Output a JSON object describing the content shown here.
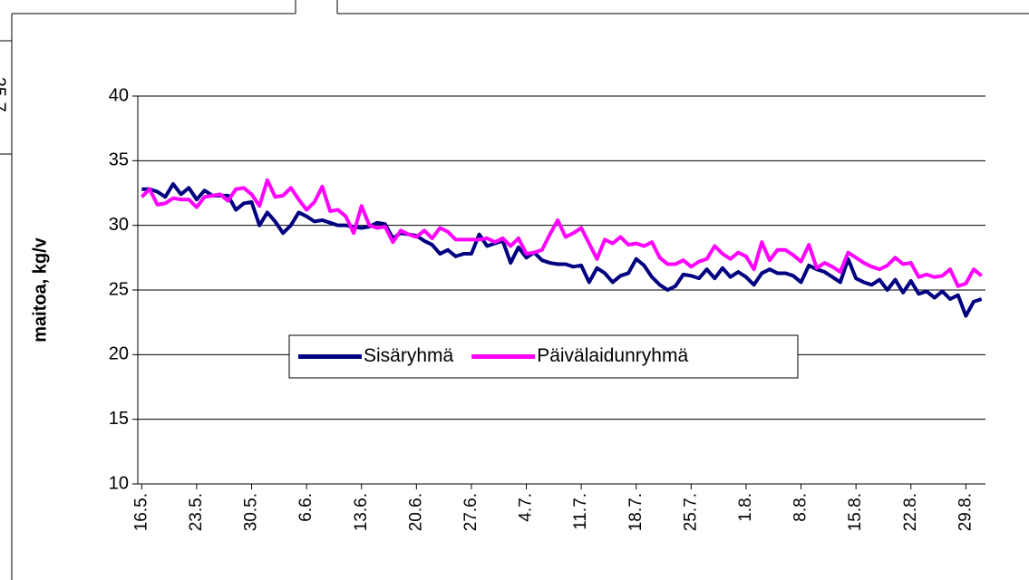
{
  "cropped_label": "25.7.",
  "chart_data": {
    "type": "line",
    "ylabel": "maitoa, kg/v",
    "categories": [
      "16.5.",
      null,
      null,
      null,
      null,
      null,
      null,
      "23.5.",
      null,
      null,
      null,
      null,
      null,
      null,
      "30.5.",
      null,
      null,
      null,
      null,
      null,
      null,
      "6.6.",
      null,
      null,
      null,
      null,
      null,
      null,
      "13.6.",
      null,
      null,
      null,
      null,
      null,
      null,
      "20.6.",
      null,
      null,
      null,
      null,
      null,
      null,
      "27.6.",
      null,
      null,
      null,
      null,
      null,
      null,
      "4.7.",
      null,
      null,
      null,
      null,
      null,
      null,
      "11.7.",
      null,
      null,
      null,
      null,
      null,
      null,
      "18.7.",
      null,
      null,
      null,
      null,
      null,
      null,
      "25.7.",
      null,
      null,
      null,
      null,
      null,
      null,
      "1.8.",
      null,
      null,
      null,
      null,
      null,
      null,
      "8.8.",
      null,
      null,
      null,
      null,
      null,
      null,
      "15.8.",
      null,
      null,
      null,
      null,
      null,
      null,
      "22.8.",
      null,
      null,
      null,
      null,
      null,
      null,
      "29.8.",
      null,
      null
    ],
    "series": [
      {
        "name": "Sisäryhmä",
        "color": "#000080",
        "values": [
          32.8,
          32.8,
          32.6,
          32.2,
          33.2,
          32.4,
          32.9,
          32.0,
          32.7,
          32.3,
          32.3,
          32.3,
          31.2,
          31.7,
          31.8,
          30.0,
          31.0,
          30.3,
          29.4,
          30.0,
          31.0,
          30.7,
          30.3,
          30.4,
          30.2,
          30.0,
          30.0,
          29.9,
          29.8,
          29.9,
          30.2,
          30.1,
          29.0,
          29.4,
          29.3,
          29.2,
          28.8,
          28.5,
          27.8,
          28.1,
          27.6,
          27.8,
          27.8,
          29.3,
          28.4,
          28.6,
          28.8,
          27.1,
          28.3,
          27.5,
          27.9,
          27.3,
          27.1,
          27.0,
          27.0,
          26.8,
          26.9,
          25.6,
          26.7,
          26.3,
          25.6,
          26.1,
          26.3,
          27.4,
          26.9,
          26.0,
          25.4,
          25.0,
          25.3,
          26.2,
          26.1,
          25.9,
          26.6,
          25.9,
          26.7,
          26.0,
          26.4,
          26.0,
          25.4,
          26.3,
          26.6,
          26.3,
          26.3,
          26.1,
          25.6,
          26.9,
          26.6,
          26.4,
          26.0,
          25.6,
          27.4,
          25.9,
          25.6,
          25.4,
          25.8,
          25.0,
          25.8,
          24.8,
          25.7,
          24.7,
          24.9,
          24.4,
          24.9,
          24.3,
          24.6,
          23.0,
          24.1,
          24.3
        ]
      },
      {
        "name": "Päivälaidunryhmä",
        "color": "#ff00ff",
        "values": [
          32.2,
          32.8,
          31.6,
          31.7,
          32.1,
          32.0,
          32.0,
          31.4,
          32.2,
          32.3,
          32.4,
          31.9,
          32.8,
          32.9,
          32.4,
          31.5,
          33.5,
          32.2,
          32.3,
          32.9,
          32.0,
          31.2,
          31.8,
          33.0,
          31.1,
          31.2,
          30.7,
          29.4,
          31.5,
          30.0,
          29.8,
          29.9,
          28.7,
          29.6,
          29.3,
          29.1,
          29.6,
          29.0,
          29.8,
          29.5,
          28.9,
          28.9,
          28.9,
          28.9,
          29.0,
          28.7,
          29.0,
          28.4,
          29.0,
          27.8,
          27.9,
          28.1,
          29.3,
          30.4,
          29.1,
          29.4,
          29.8,
          28.6,
          27.4,
          28.9,
          28.6,
          29.1,
          28.5,
          28.6,
          28.4,
          28.7,
          27.5,
          27.0,
          27.0,
          27.3,
          26.8,
          27.2,
          27.4,
          28.4,
          27.8,
          27.4,
          27.9,
          27.6,
          26.6,
          28.7,
          27.3,
          28.1,
          28.1,
          27.7,
          27.2,
          28.5,
          26.7,
          27.1,
          26.8,
          26.4,
          27.9,
          27.5,
          27.1,
          26.8,
          26.6,
          26.9,
          27.5,
          27.0,
          27.1,
          26.0,
          26.2,
          26.0,
          26.1,
          26.6,
          25.3,
          25.5,
          26.6,
          26.1
        ]
      }
    ],
    "ylim": [
      10,
      40
    ],
    "yticks": [
      10,
      15,
      20,
      25,
      30,
      35,
      40
    ],
    "grid": true,
    "legend": "center"
  }
}
